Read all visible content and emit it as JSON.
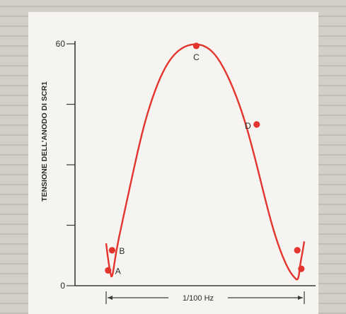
{
  "chart_data": {
    "type": "line",
    "title": "",
    "xlabel": "1/100 Hz",
    "ylabel": "TENSIONE DELL'ANODO DI SCR1",
    "yticks": [
      {
        "value": 0,
        "label": "0"
      },
      {
        "value": 15,
        "label": ""
      },
      {
        "value": 30,
        "label": ""
      },
      {
        "value": 45,
        "label": ""
      },
      {
        "value": 60,
        "label": "60"
      }
    ],
    "ylim": [
      0,
      60
    ],
    "xlim": [
      0,
      100
    ],
    "grid": false,
    "line_color": "#e4342e",
    "series": [
      {
        "x": [
          0,
          1,
          2,
          3,
          5,
          8,
          12,
          16,
          20,
          25,
          30,
          35,
          40,
          45,
          50,
          55,
          60,
          65,
          70,
          75,
          80,
          84,
          88,
          92,
          95,
          97,
          98,
          99,
          100
        ],
        "values": [
          10.5,
          6.5,
          3.5,
          1.5,
          8.5,
          15.5,
          24.5,
          33.5,
          41.5,
          49,
          54.5,
          57.8,
          59.5,
          60,
          59.5,
          57.5,
          53.5,
          48,
          41,
          32,
          22,
          14.5,
          8.5,
          4,
          2,
          1.2,
          5.5,
          8,
          11
        ]
      }
    ],
    "points": [
      {
        "label": "A",
        "x": 1,
        "y": 3.8
      },
      {
        "label": "B",
        "x": 3,
        "y": 8.8
      },
      {
        "label": "C",
        "x": 45.5,
        "y": 59.5
      },
      {
        "label": "D",
        "x": 76,
        "y": 40
      },
      {
        "label": "",
        "x": 96.5,
        "y": 8.8
      },
      {
        "label": "",
        "x": 98.5,
        "y": 4.2
      }
    ],
    "annotation_markers": {
      "left_x": 0,
      "right_x": 100,
      "label": "1/100 Hz"
    }
  }
}
